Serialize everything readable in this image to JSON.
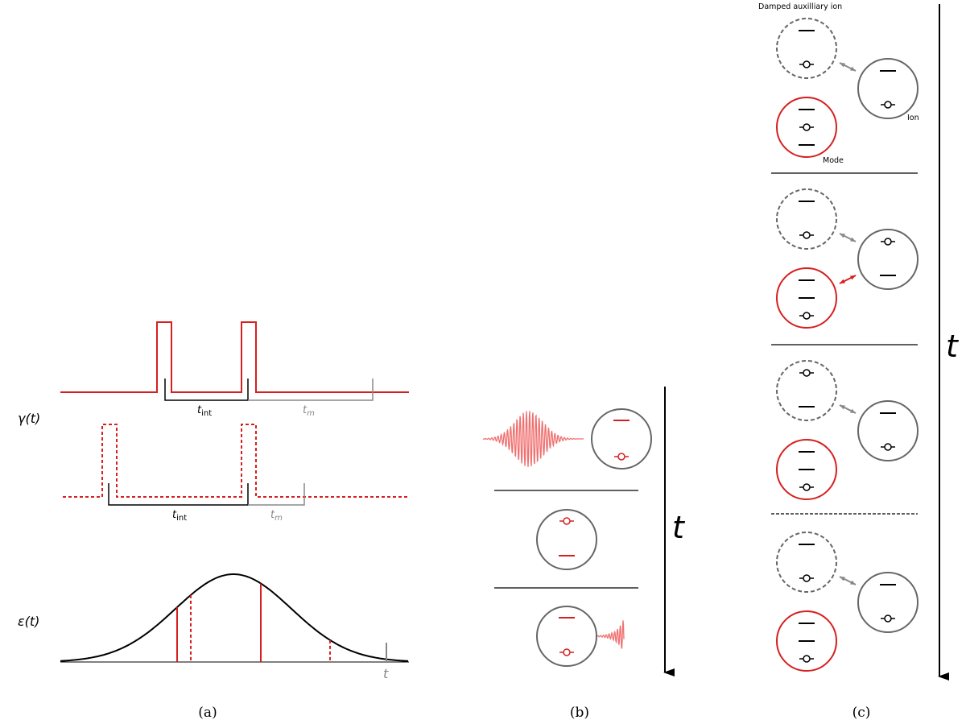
{
  "panel_a": {
    "gamma_label": "γ(t)",
    "epsilon_label": "ε(t)",
    "row1": {
      "t_int": {
        "base": "t",
        "sub": "int"
      },
      "t_m": {
        "base": "t",
        "sub": "m"
      }
    },
    "row2": {
      "t_int": {
        "base": "t",
        "sub": "int"
      },
      "t_m": {
        "base": "t",
        "sub": "m"
      }
    },
    "time_label": "t",
    "caption": "(a)"
  },
  "panel_b": {
    "time_label": "t",
    "caption": "(b)"
  },
  "panel_c": {
    "auxiliary_label": "Damped auxilliary ion",
    "ion_label": "Ion",
    "mode_label": "Mode",
    "time_label": "t",
    "caption": "(c)"
  }
}
